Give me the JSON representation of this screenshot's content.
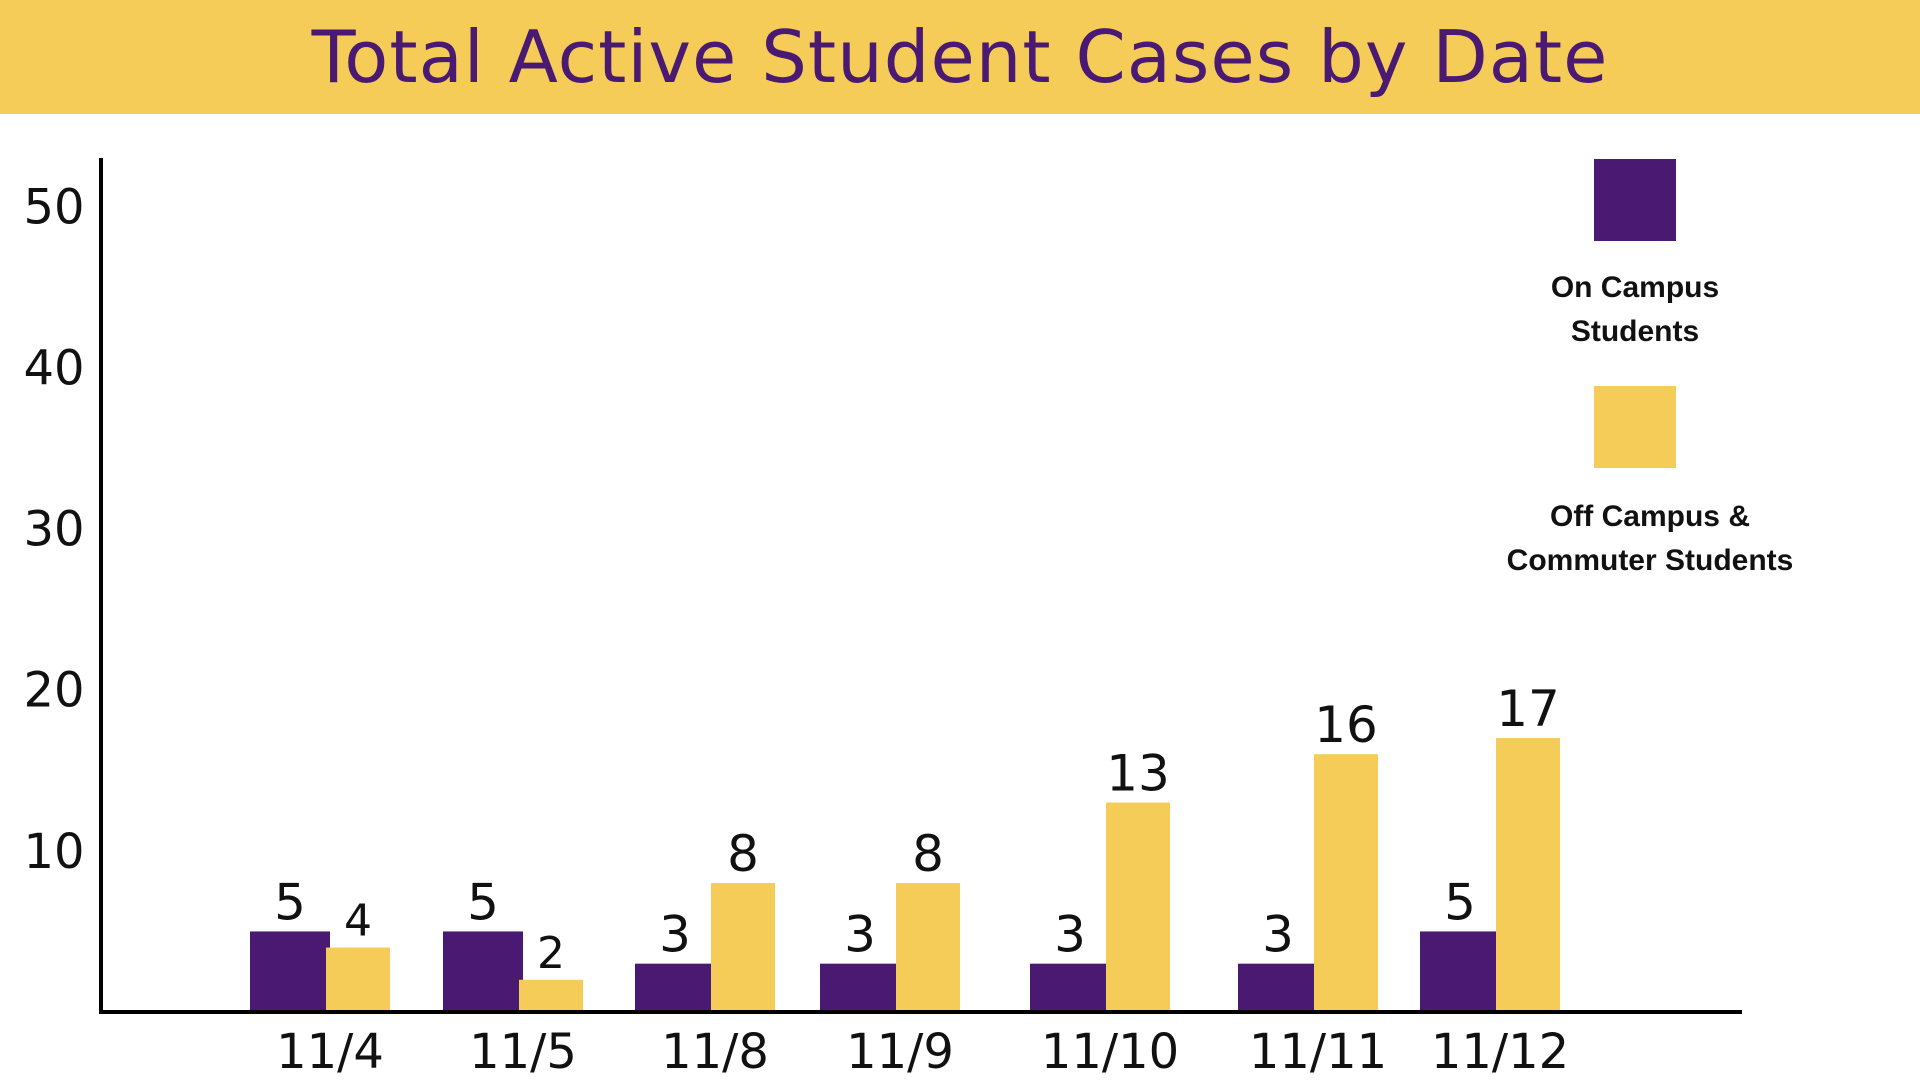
{
  "chart_data": {
    "type": "bar",
    "title": "Total Active Student Cases by Date",
    "xlabel": "",
    "ylabel": "",
    "ylim": [
      0,
      53
    ],
    "yticks": [
      10,
      20,
      30,
      40,
      50
    ],
    "categories": [
      "11/4",
      "11/5",
      "11/8",
      "11/9",
      "11/10",
      "11/11",
      "11/12"
    ],
    "series": [
      {
        "name": "On Campus Students",
        "color": "#4a1a73",
        "values": [
          5,
          5,
          3,
          3,
          3,
          3,
          5
        ]
      },
      {
        "name": "Off Campus & Commuter Students",
        "color": "#f4cc57",
        "values": [
          4,
          2,
          8,
          8,
          13,
          16,
          17
        ]
      }
    ],
    "data_labels": true,
    "legend_position": "right",
    "grid": false
  },
  "legend": {
    "on_campus_line1": "On Campus",
    "on_campus_line2": "Students",
    "off_campus_line1": "Off Campus &",
    "off_campus_line2": "Commuter Students"
  }
}
